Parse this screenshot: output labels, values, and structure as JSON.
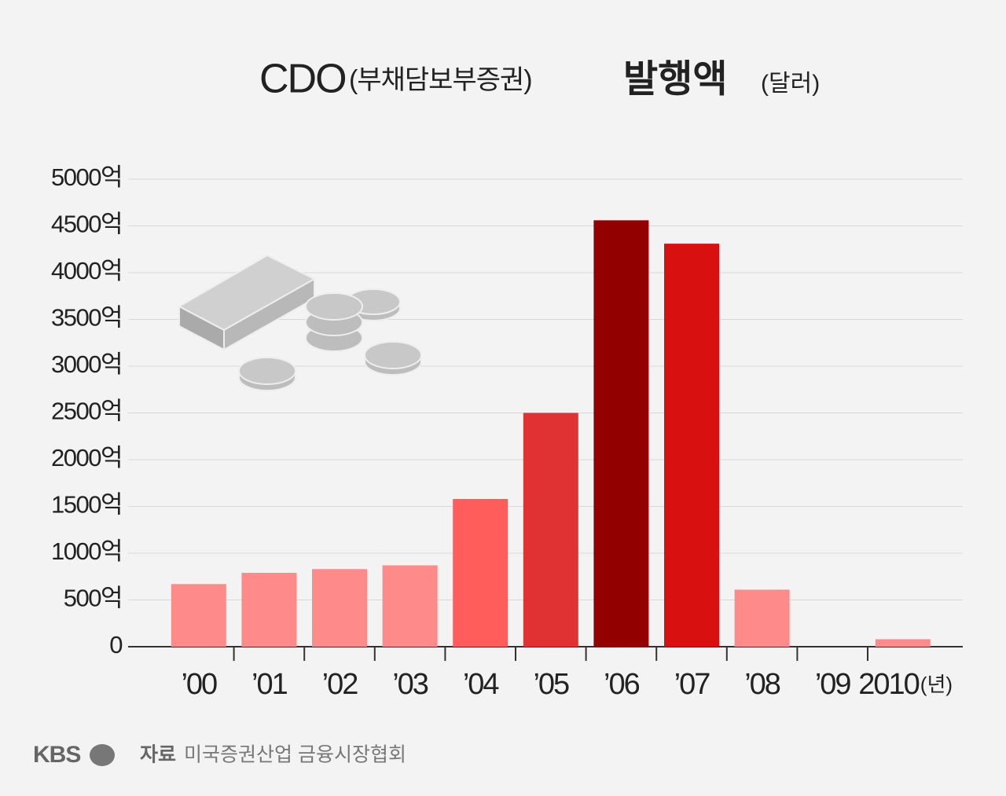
{
  "chart_data": {
    "type": "bar",
    "title_parts": [
      "CDO",
      "(부채담보부증권)",
      "발행액",
      "(달러)"
    ],
    "categories": [
      "’00",
      "’01",
      "’02",
      "’03",
      "’04",
      "’05",
      "’06",
      "’07",
      "’08",
      "’09",
      "2010"
    ],
    "x_unit": "(년)",
    "values": [
      670,
      790,
      830,
      870,
      1580,
      2500,
      4560,
      4310,
      610,
      0,
      80
    ],
    "colors": [
      "#ff8a8a",
      "#ff8a8a",
      "#ff8a8a",
      "#ff8a8a",
      "#ff5c5c",
      "#e03232",
      "#920000",
      "#d81010",
      "#ff8a8a",
      "#ff8a8a",
      "#ff8a8a"
    ],
    "ylim": [
      0,
      5000
    ],
    "yticks": [
      0,
      {
        "value": 500,
        "label": "500억"
      },
      {
        "value": 1000,
        "label": "1000억"
      },
      {
        "value": 1500,
        "label": "1500억"
      },
      {
        "value": 2000,
        "label": "2000억"
      },
      {
        "value": 2500,
        "label": "2500억"
      },
      {
        "value": 3000,
        "label": "3000억"
      },
      {
        "value": 3500,
        "label": "3500억"
      },
      {
        "value": 4000,
        "label": "4000억"
      },
      {
        "value": 4500,
        "label": "4500억"
      },
      {
        "value": 5000,
        "label": "5000억"
      }
    ],
    "grid": true
  },
  "footer": {
    "brand": "KBS",
    "source_label": "자료",
    "source": "미국증권산업 금융시장협회"
  }
}
